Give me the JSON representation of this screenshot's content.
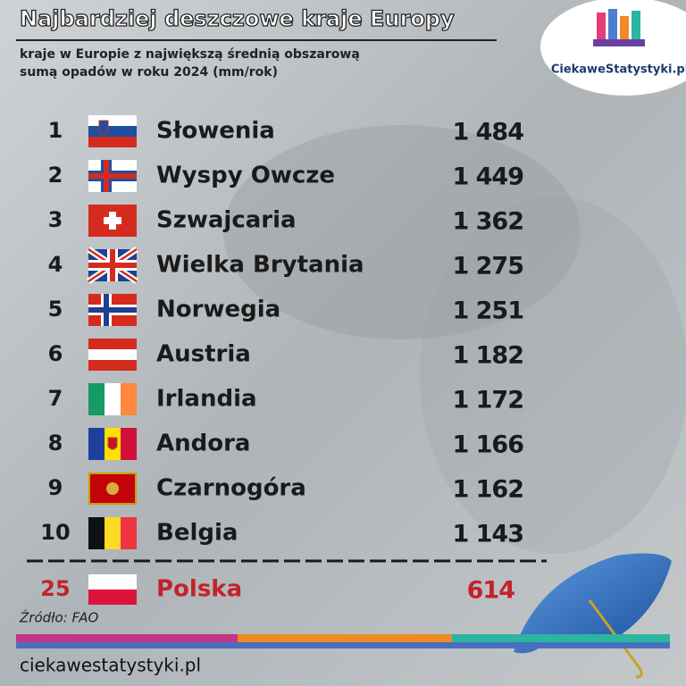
{
  "header": {
    "title": "Najbardziej deszczowe kraje Europy",
    "subtitle_lines": [
      "kraje w Europie z największą średnią obszarową",
      "sumą opadów w roku 2024 (mm/rok)"
    ]
  },
  "logo": {
    "text": "CiekaweStatystyki.pl"
  },
  "table": {
    "rows": [
      [
        1,
        "Słowenia",
        "1 484"
      ],
      [
        2,
        "Wyspy Owcze",
        "1 449"
      ],
      [
        3,
        "Szwajcaria",
        "1 362"
      ],
      [
        4,
        "Wielka Brytania",
        "1 275"
      ],
      [
        5,
        "Norwegia",
        "1 251"
      ],
      [
        6,
        "Austria",
        "1 182"
      ],
      [
        7,
        "Irlandia",
        "1 172"
      ],
      [
        8,
        "Andora",
        "1 166"
      ],
      [
        9,
        "Czarnogóra",
        "1 162"
      ],
      [
        10,
        "Belgia",
        "1 143"
      ]
    ]
  },
  "highlight": {
    "rank": 25,
    "name": "Polska",
    "value": "614"
  },
  "source": "Źródło: FAO",
  "footer": "ciekawestatystyki.pl"
}
